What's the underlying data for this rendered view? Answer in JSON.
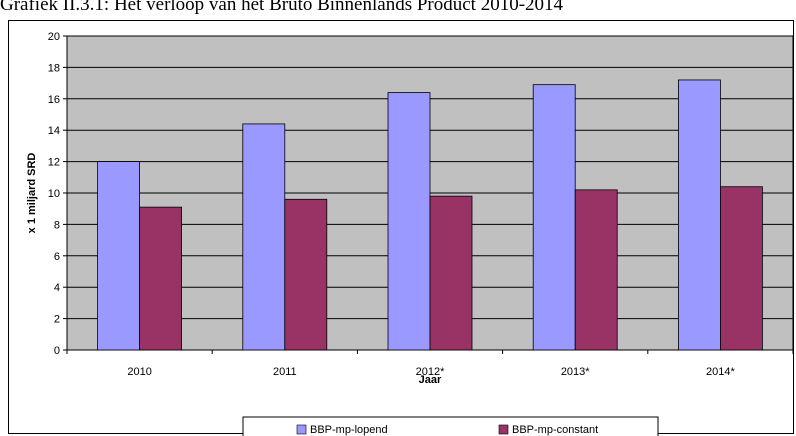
{
  "title": "Grafiek II.3.1: Het verloop van het Bruto Binnenlands Product 2010-2014",
  "colors": {
    "plot_bg": "#c0c0c0",
    "series1": "#9999ff",
    "series2": "#993366"
  },
  "chart_data": {
    "type": "bar",
    "categories": [
      "2010",
      "2011",
      "2012*",
      "2013*",
      "2014*"
    ],
    "series": [
      {
        "name": "BBP-mp-lopend",
        "values": [
          12.0,
          14.4,
          16.4,
          16.9,
          17.2
        ]
      },
      {
        "name": "BBP-mp-constant",
        "values": [
          9.1,
          9.6,
          9.8,
          10.2,
          10.4
        ]
      }
    ],
    "xlabel": "Jaar",
    "ylabel": "x 1 miljard SRD",
    "ylim": [
      0,
      20
    ],
    "yticks": [
      0,
      2,
      4,
      6,
      8,
      10,
      12,
      14,
      16,
      18,
      20
    ],
    "grid": true,
    "legend": "bottom"
  }
}
